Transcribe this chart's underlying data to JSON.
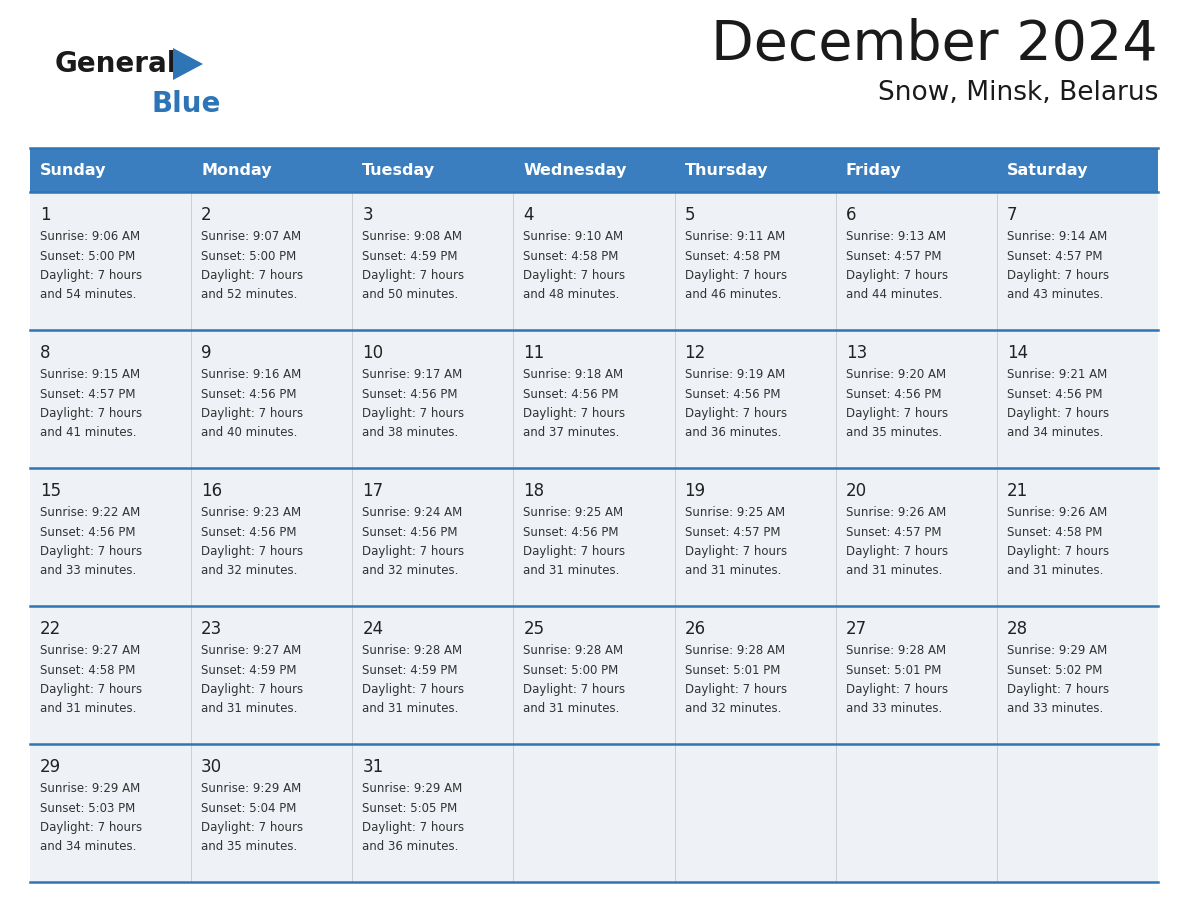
{
  "title": "December 2024",
  "subtitle": "Snow, Minsk, Belarus",
  "header_color": "#3a7ebf",
  "header_text_color": "#ffffff",
  "cell_bg_color": "#eef2f7",
  "border_color": "#2e75b6",
  "thin_border_color": "#c0c0c0",
  "days_of_week": [
    "Sunday",
    "Monday",
    "Tuesday",
    "Wednesday",
    "Thursday",
    "Friday",
    "Saturday"
  ],
  "calendar_data": [
    [
      {
        "day": 1,
        "sunrise": "9:06 AM",
        "sunset": "5:00 PM",
        "daylight": "7 hours and 54 minutes"
      },
      {
        "day": 2,
        "sunrise": "9:07 AM",
        "sunset": "5:00 PM",
        "daylight": "7 hours and 52 minutes"
      },
      {
        "day": 3,
        "sunrise": "9:08 AM",
        "sunset": "4:59 PM",
        "daylight": "7 hours and 50 minutes"
      },
      {
        "day": 4,
        "sunrise": "9:10 AM",
        "sunset": "4:58 PM",
        "daylight": "7 hours and 48 minutes"
      },
      {
        "day": 5,
        "sunrise": "9:11 AM",
        "sunset": "4:58 PM",
        "daylight": "7 hours and 46 minutes"
      },
      {
        "day": 6,
        "sunrise": "9:13 AM",
        "sunset": "4:57 PM",
        "daylight": "7 hours and 44 minutes"
      },
      {
        "day": 7,
        "sunrise": "9:14 AM",
        "sunset": "4:57 PM",
        "daylight": "7 hours and 43 minutes"
      }
    ],
    [
      {
        "day": 8,
        "sunrise": "9:15 AM",
        "sunset": "4:57 PM",
        "daylight": "7 hours and 41 minutes"
      },
      {
        "day": 9,
        "sunrise": "9:16 AM",
        "sunset": "4:56 PM",
        "daylight": "7 hours and 40 minutes"
      },
      {
        "day": 10,
        "sunrise": "9:17 AM",
        "sunset": "4:56 PM",
        "daylight": "7 hours and 38 minutes"
      },
      {
        "day": 11,
        "sunrise": "9:18 AM",
        "sunset": "4:56 PM",
        "daylight": "7 hours and 37 minutes"
      },
      {
        "day": 12,
        "sunrise": "9:19 AM",
        "sunset": "4:56 PM",
        "daylight": "7 hours and 36 minutes"
      },
      {
        "day": 13,
        "sunrise": "9:20 AM",
        "sunset": "4:56 PM",
        "daylight": "7 hours and 35 minutes"
      },
      {
        "day": 14,
        "sunrise": "9:21 AM",
        "sunset": "4:56 PM",
        "daylight": "7 hours and 34 minutes"
      }
    ],
    [
      {
        "day": 15,
        "sunrise": "9:22 AM",
        "sunset": "4:56 PM",
        "daylight": "7 hours and 33 minutes"
      },
      {
        "day": 16,
        "sunrise": "9:23 AM",
        "sunset": "4:56 PM",
        "daylight": "7 hours and 32 minutes"
      },
      {
        "day": 17,
        "sunrise": "9:24 AM",
        "sunset": "4:56 PM",
        "daylight": "7 hours and 32 minutes"
      },
      {
        "day": 18,
        "sunrise": "9:25 AM",
        "sunset": "4:56 PM",
        "daylight": "7 hours and 31 minutes"
      },
      {
        "day": 19,
        "sunrise": "9:25 AM",
        "sunset": "4:57 PM",
        "daylight": "7 hours and 31 minutes"
      },
      {
        "day": 20,
        "sunrise": "9:26 AM",
        "sunset": "4:57 PM",
        "daylight": "7 hours and 31 minutes"
      },
      {
        "day": 21,
        "sunrise": "9:26 AM",
        "sunset": "4:58 PM",
        "daylight": "7 hours and 31 minutes"
      }
    ],
    [
      {
        "day": 22,
        "sunrise": "9:27 AM",
        "sunset": "4:58 PM",
        "daylight": "7 hours and 31 minutes"
      },
      {
        "day": 23,
        "sunrise": "9:27 AM",
        "sunset": "4:59 PM",
        "daylight": "7 hours and 31 minutes"
      },
      {
        "day": 24,
        "sunrise": "9:28 AM",
        "sunset": "4:59 PM",
        "daylight": "7 hours and 31 minutes"
      },
      {
        "day": 25,
        "sunrise": "9:28 AM",
        "sunset": "5:00 PM",
        "daylight": "7 hours and 31 minutes"
      },
      {
        "day": 26,
        "sunrise": "9:28 AM",
        "sunset": "5:01 PM",
        "daylight": "7 hours and 32 minutes"
      },
      {
        "day": 27,
        "sunrise": "9:28 AM",
        "sunset": "5:01 PM",
        "daylight": "7 hours and 33 minutes"
      },
      {
        "day": 28,
        "sunrise": "9:29 AM",
        "sunset": "5:02 PM",
        "daylight": "7 hours and 33 minutes"
      }
    ],
    [
      {
        "day": 29,
        "sunrise": "9:29 AM",
        "sunset": "5:03 PM",
        "daylight": "7 hours and 34 minutes"
      },
      {
        "day": 30,
        "sunrise": "9:29 AM",
        "sunset": "5:04 PM",
        "daylight": "7 hours and 35 minutes"
      },
      {
        "day": 31,
        "sunrise": "9:29 AM",
        "sunset": "5:05 PM",
        "daylight": "7 hours and 36 minutes"
      },
      null,
      null,
      null,
      null
    ]
  ]
}
